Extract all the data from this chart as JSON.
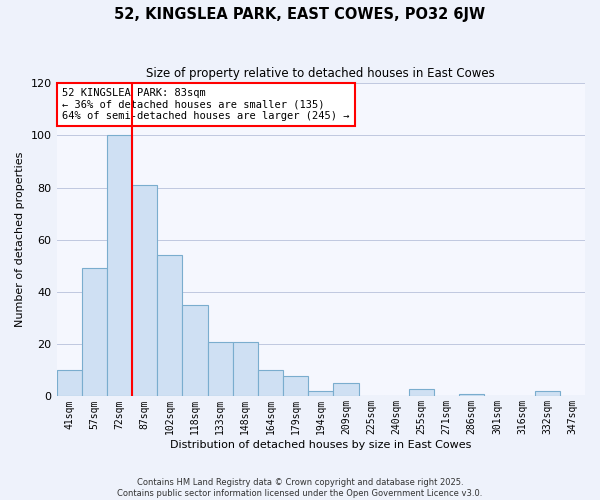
{
  "title": "52, KINGSLEA PARK, EAST COWES, PO32 6JW",
  "subtitle": "Size of property relative to detached houses in East Cowes",
  "xlabel": "Distribution of detached houses by size in East Cowes",
  "ylabel": "Number of detached properties",
  "bar_labels": [
    "41sqm",
    "57sqm",
    "72sqm",
    "87sqm",
    "102sqm",
    "118sqm",
    "133sqm",
    "148sqm",
    "164sqm",
    "179sqm",
    "194sqm",
    "209sqm",
    "225sqm",
    "240sqm",
    "255sqm",
    "271sqm",
    "286sqm",
    "301sqm",
    "316sqm",
    "332sqm",
    "347sqm"
  ],
  "bar_values": [
    10,
    49,
    100,
    81,
    54,
    35,
    21,
    21,
    10,
    8,
    2,
    5,
    0,
    0,
    3,
    0,
    1,
    0,
    0,
    2,
    0
  ],
  "bar_color": "#cfe0f3",
  "bar_edge_color": "#7aadce",
  "red_line_index": 3,
  "annotation_title": "52 KINGSLEA PARK: 83sqm",
  "annotation_line2": "← 36% of detached houses are smaller (135)",
  "annotation_line3": "64% of semi-detached houses are larger (245) →",
  "ylim": [
    0,
    120
  ],
  "yticks": [
    0,
    20,
    40,
    60,
    80,
    100,
    120
  ],
  "footer_line1": "Contains HM Land Registry data © Crown copyright and database right 2025.",
  "footer_line2": "Contains public sector information licensed under the Open Government Licence v3.0.",
  "background_color": "#eef2fb",
  "plot_bg_color": "#f5f7fe",
  "grid_color": "#c0c8e0"
}
